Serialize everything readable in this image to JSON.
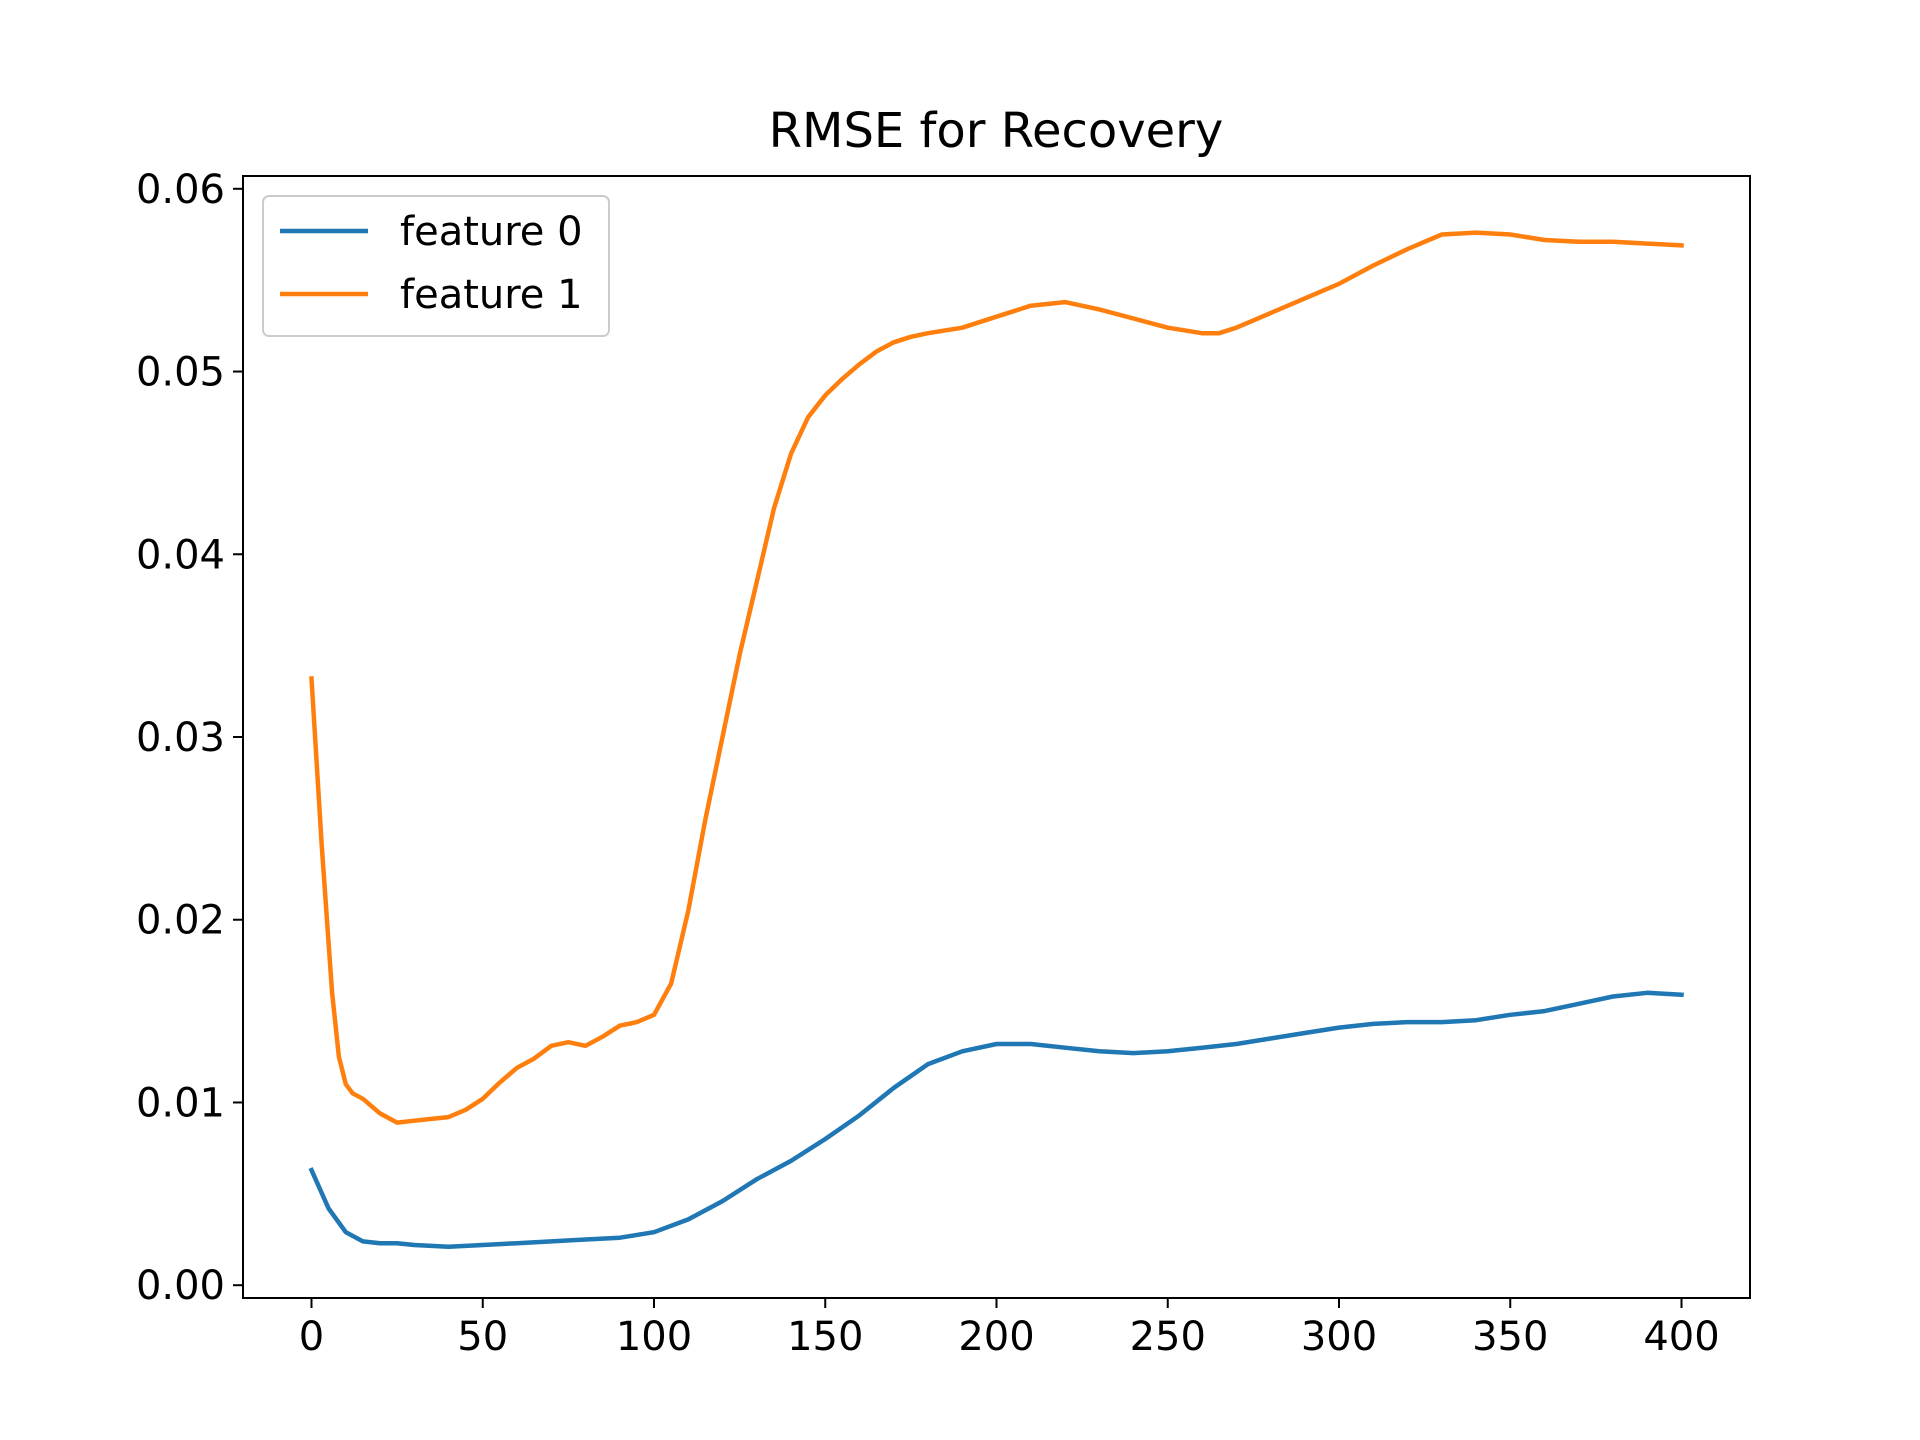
{
  "chart_data": {
    "type": "line",
    "title": "RMSE for Recovery",
    "xlabel": "",
    "ylabel": "",
    "xlim": [
      -20,
      420
    ],
    "ylim": [
      -0.0007,
      0.0607
    ],
    "xticks": [
      0,
      50,
      100,
      150,
      200,
      250,
      300,
      350,
      400
    ],
    "xtick_labels": [
      "0",
      "50",
      "100",
      "150",
      "200",
      "250",
      "300",
      "350",
      "400"
    ],
    "yticks": [
      0.0,
      0.01,
      0.02,
      0.03,
      0.04,
      0.05,
      0.06
    ],
    "ytick_labels": [
      "0.00",
      "0.01",
      "0.02",
      "0.03",
      "0.04",
      "0.05",
      "0.06"
    ],
    "grid": false,
    "legend_position": "top-left",
    "series": [
      {
        "name": "feature 0",
        "color": "#1f77b4",
        "x": [
          0,
          5,
          10,
          15,
          20,
          25,
          30,
          40,
          50,
          60,
          70,
          80,
          90,
          100,
          110,
          120,
          130,
          140,
          150,
          160,
          170,
          180,
          190,
          200,
          210,
          220,
          230,
          240,
          250,
          260,
          270,
          280,
          290,
          300,
          310,
          320,
          330,
          340,
          350,
          360,
          370,
          380,
          390,
          400
        ],
        "y": [
          0.0063,
          0.0042,
          0.0029,
          0.0024,
          0.0023,
          0.0023,
          0.0022,
          0.0021,
          0.0022,
          0.0023,
          0.0024,
          0.0025,
          0.0026,
          0.0029,
          0.0036,
          0.0046,
          0.0058,
          0.0068,
          0.008,
          0.0093,
          0.0108,
          0.0121,
          0.0128,
          0.0132,
          0.0132,
          0.013,
          0.0128,
          0.0127,
          0.0128,
          0.013,
          0.0132,
          0.0135,
          0.0138,
          0.0141,
          0.0143,
          0.0144,
          0.0144,
          0.0145,
          0.0148,
          0.015,
          0.0154,
          0.0158,
          0.016,
          0.0159
        ]
      },
      {
        "name": "feature 1",
        "color": "#ff7f0e",
        "x": [
          0,
          3,
          6,
          8,
          10,
          12,
          15,
          20,
          25,
          30,
          35,
          40,
          45,
          50,
          55,
          60,
          65,
          70,
          75,
          80,
          85,
          90,
          95,
          100,
          105,
          110,
          115,
          120,
          125,
          130,
          135,
          140,
          145,
          150,
          155,
          160,
          165,
          170,
          175,
          180,
          190,
          200,
          210,
          220,
          230,
          240,
          250,
          260,
          265,
          270,
          280,
          290,
          300,
          310,
          320,
          330,
          340,
          350,
          360,
          370,
          380,
          390,
          400
        ],
        "y": [
          0.0332,
          0.024,
          0.016,
          0.0125,
          0.011,
          0.0105,
          0.0102,
          0.0094,
          0.0089,
          0.009,
          0.0091,
          0.0092,
          0.0096,
          0.0102,
          0.0111,
          0.0119,
          0.0124,
          0.0131,
          0.0133,
          0.0131,
          0.0136,
          0.0142,
          0.0144,
          0.0148,
          0.0165,
          0.0205,
          0.0255,
          0.03,
          0.0345,
          0.0385,
          0.0425,
          0.0455,
          0.0475,
          0.0487,
          0.0496,
          0.0504,
          0.0511,
          0.0516,
          0.0519,
          0.0521,
          0.0524,
          0.053,
          0.0536,
          0.0538,
          0.0534,
          0.0529,
          0.0524,
          0.0521,
          0.0521,
          0.0524,
          0.0532,
          0.054,
          0.0548,
          0.0558,
          0.0567,
          0.0575,
          0.0576,
          0.0575,
          0.0572,
          0.0571,
          0.0571,
          0.057,
          0.0569
        ]
      }
    ]
  }
}
